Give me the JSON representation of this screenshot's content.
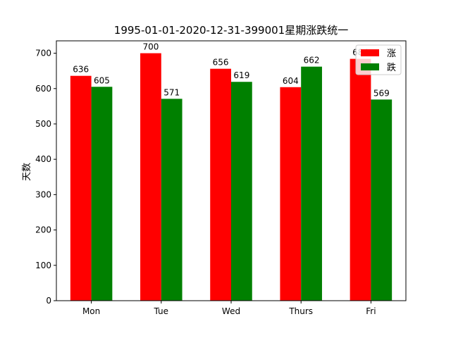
{
  "chart_data": {
    "type": "bar",
    "title": "1995-01-01-2020-12-31-399001星期涨跌统一",
    "xlabel": "",
    "ylabel": "天数",
    "categories": [
      "Mon",
      "Tue",
      "Wed",
      "Thurs",
      "Fri"
    ],
    "ylim": [
      0,
      735
    ],
    "yticks": [
      0,
      100,
      200,
      300,
      400,
      500,
      600,
      700
    ],
    "grid": false,
    "legend_position": "top-right",
    "series": [
      {
        "name": "涨",
        "color": "#ff0000",
        "values": [
          636,
          700,
          656,
          604,
          684
        ]
      },
      {
        "name": "跌",
        "color": "#008000",
        "values": [
          605,
          571,
          619,
          662,
          569
        ]
      }
    ]
  }
}
